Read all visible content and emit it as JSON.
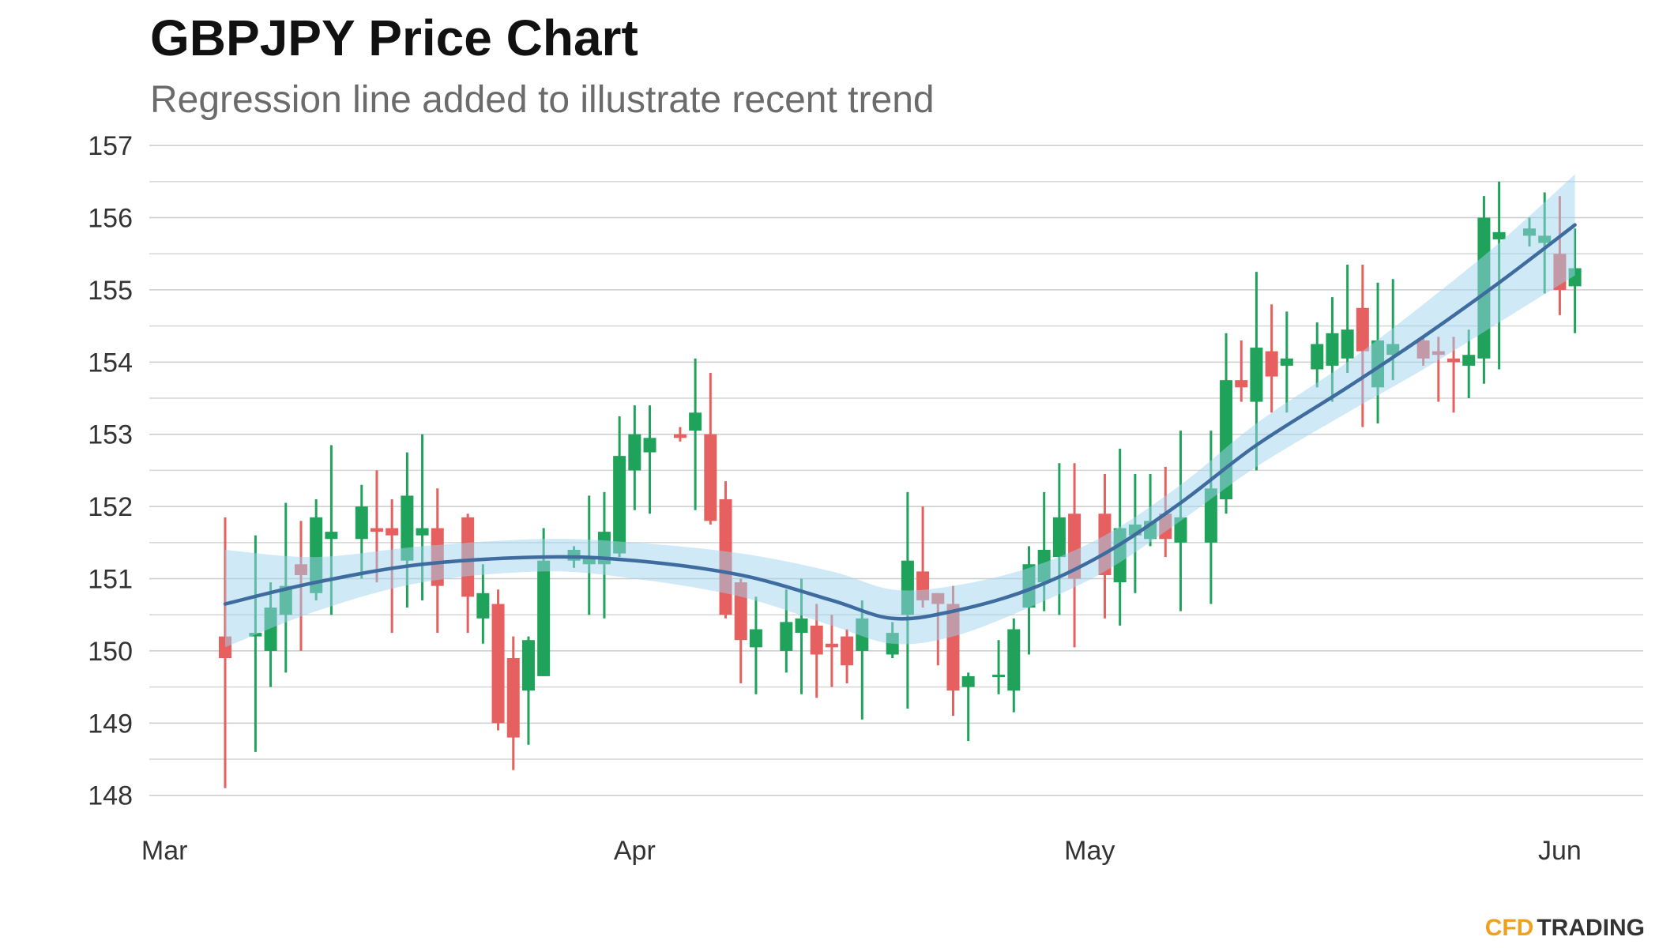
{
  "chart_data": {
    "type": "candlestick",
    "title": "GBPJPY Price Chart",
    "subtitle": "Regression line added to illustrate recent trend",
    "xlim": [
      -1,
      97.5
    ],
    "xticks": [
      {
        "value": 0,
        "label": "Mar"
      },
      {
        "value": 31,
        "label": "Apr"
      },
      {
        "value": 61,
        "label": "May"
      },
      {
        "value": 92,
        "label": "Jun"
      }
    ],
    "ylim": [
      147.8,
      157.1
    ],
    "yticks": [
      148,
      149,
      150,
      151,
      152,
      153,
      154,
      155,
      156,
      157
    ],
    "minor_yticks": [
      148.5,
      149.5,
      150.5,
      151.5,
      152.5,
      153.5,
      154.5,
      155.5,
      156.5
    ],
    "grid": true,
    "up_color": "#1fa35b",
    "down_color": "#e5605e",
    "x": [
      4,
      6,
      7,
      8,
      9,
      10,
      11,
      13,
      14,
      15,
      16,
      17,
      18,
      20,
      21,
      22,
      23,
      24,
      25,
      27,
      28,
      29,
      30,
      31,
      32,
      34,
      35,
      36,
      37,
      38,
      39,
      41,
      42,
      43,
      44,
      45,
      46,
      48,
      49,
      50,
      51,
      52,
      53,
      55,
      56,
      57,
      58,
      59,
      60,
      62,
      63,
      64,
      65,
      66,
      67,
      69,
      70,
      71,
      72,
      73,
      74,
      76,
      77,
      78,
      79,
      80,
      81,
      83,
      84,
      85,
      86,
      87,
      88,
      90,
      91,
      92,
      93
    ],
    "open": [
      150.2,
      150.2,
      150.0,
      150.5,
      151.2,
      150.8,
      151.55,
      151.55,
      151.7,
      151.7,
      151.25,
      151.6,
      151.7,
      151.85,
      150.45,
      150.65,
      149.9,
      149.45,
      149.65,
      151.25,
      151.2,
      151.2,
      151.35,
      152.5,
      152.75,
      153.0,
      153.05,
      153.0,
      152.1,
      150.95,
      150.05,
      150.0,
      150.25,
      150.35,
      150.1,
      150.2,
      150.0,
      149.95,
      150.5,
      151.1,
      150.8,
      150.65,
      149.5,
      149.65,
      149.45,
      150.6,
      150.95,
      151.3,
      151.9,
      151.9,
      150.95,
      151.6,
      151.55,
      151.9,
      151.5,
      151.5,
      152.1,
      153.75,
      153.45,
      154.15,
      153.95,
      153.9,
      153.95,
      154.05,
      154.75,
      153.65,
      154.1,
      154.3,
      154.15,
      154.05,
      153.95,
      154.05,
      155.7,
      155.75,
      155.65,
      155.5,
      155.05
    ],
    "high": [
      151.85,
      151.6,
      150.95,
      152.05,
      151.8,
      152.1,
      152.85,
      152.3,
      152.5,
      152.1,
      152.75,
      153.0,
      152.25,
      151.9,
      151.2,
      150.85,
      150.2,
      150.2,
      151.7,
      151.45,
      152.15,
      152.2,
      153.25,
      153.4,
      153.4,
      153.1,
      154.05,
      153.85,
      152.35,
      151.0,
      150.75,
      150.85,
      151.0,
      150.65,
      150.5,
      150.3,
      150.7,
      150.4,
      152.2,
      152.0,
      150.8,
      150.9,
      149.7,
      150.15,
      150.45,
      151.45,
      152.2,
      152.6,
      152.6,
      152.45,
      152.8,
      152.45,
      152.45,
      152.55,
      153.05,
      153.05,
      154.4,
      154.3,
      155.25,
      154.8,
      154.7,
      154.55,
      154.9,
      155.35,
      155.35,
      155.1,
      155.15,
      154.35,
      154.35,
      154.35,
      154.45,
      156.3,
      156.5,
      156.0,
      156.35,
      156.3,
      155.85
    ],
    "low": [
      148.1,
      148.6,
      149.5,
      149.7,
      150.0,
      150.7,
      150.5,
      151.0,
      150.95,
      150.25,
      150.6,
      150.7,
      150.25,
      150.25,
      150.1,
      148.9,
      148.35,
      148.7,
      149.65,
      151.15,
      150.5,
      150.45,
      151.3,
      151.95,
      151.9,
      152.9,
      151.95,
      151.75,
      150.45,
      149.55,
      149.4,
      149.7,
      149.4,
      149.35,
      149.5,
      149.55,
      149.05,
      149.9,
      149.2,
      150.6,
      149.8,
      149.1,
      148.75,
      149.4,
      149.15,
      149.95,
      150.55,
      150.5,
      150.05,
      150.45,
      150.35,
      150.8,
      151.45,
      151.3,
      150.55,
      150.65,
      151.9,
      153.45,
      152.5,
      153.3,
      153.3,
      153.65,
      153.45,
      153.85,
      153.1,
      153.15,
      153.75,
      153.95,
      153.45,
      153.3,
      153.5,
      153.7,
      153.9,
      155.6,
      154.95,
      154.65,
      154.4
    ],
    "close": [
      149.9,
      150.25,
      150.6,
      150.9,
      151.05,
      151.85,
      151.65,
      152.0,
      151.65,
      151.6,
      152.15,
      151.7,
      150.9,
      150.75,
      150.8,
      149.0,
      148.8,
      150.15,
      151.25,
      151.4,
      151.3,
      151.65,
      152.7,
      153.0,
      152.95,
      152.95,
      153.3,
      151.8,
      150.5,
      150.15,
      150.3,
      150.4,
      150.45,
      149.95,
      150.05,
      149.8,
      150.45,
      150.25,
      151.25,
      150.7,
      150.65,
      149.45,
      149.65,
      149.67,
      150.3,
      151.2,
      151.4,
      151.85,
      151.0,
      151.05,
      151.7,
      151.75,
      151.8,
      151.55,
      151.85,
      152.25,
      153.75,
      153.65,
      154.2,
      153.8,
      154.05,
      154.25,
      154.4,
      154.45,
      154.15,
      154.3,
      154.25,
      154.05,
      154.1,
      154.0,
      154.1,
      156.0,
      155.8,
      155.85,
      155.75,
      155.0,
      155.3
    ],
    "regression": {
      "color": "#3e6c9e",
      "band_color": "#9fd3ef",
      "x": [
        4,
        10,
        17,
        25,
        31,
        38,
        44,
        48,
        52,
        57,
        62,
        67,
        72,
        78,
        83,
        88,
        93
      ],
      "values": [
        150.65,
        150.95,
        151.2,
        151.3,
        151.25,
        151.05,
        150.7,
        150.45,
        150.55,
        150.85,
        151.35,
        152.05,
        152.85,
        153.65,
        154.35,
        155.1,
        155.9
      ],
      "lower": [
        150.05,
        150.55,
        150.95,
        151.1,
        151.0,
        150.75,
        150.35,
        150.1,
        150.2,
        150.6,
        151.1,
        151.8,
        152.55,
        153.3,
        153.9,
        154.55,
        155.2
      ],
      "upper": [
        151.4,
        151.3,
        151.45,
        151.55,
        151.5,
        151.35,
        151.1,
        150.85,
        150.9,
        151.15,
        151.6,
        152.3,
        153.15,
        154.0,
        154.8,
        155.65,
        156.6
      ]
    },
    "logo": {
      "part1": "CFD",
      "part2": "TRADING",
      "color1": "#f0a020",
      "color2": "#333333"
    }
  }
}
